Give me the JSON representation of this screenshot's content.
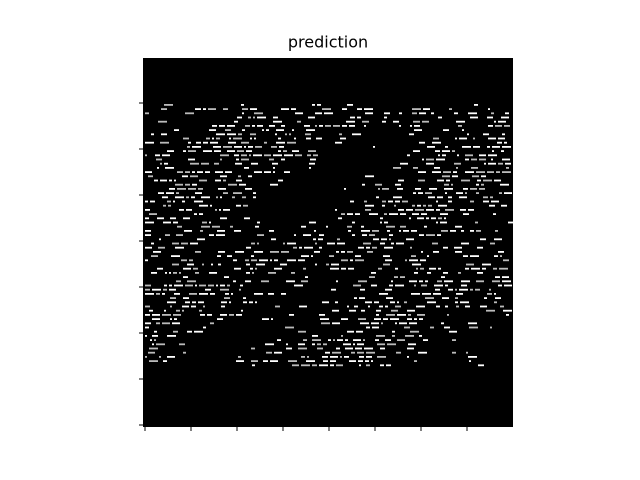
{
  "chart_data": {
    "type": "image",
    "title": "prediction"
  }
}
